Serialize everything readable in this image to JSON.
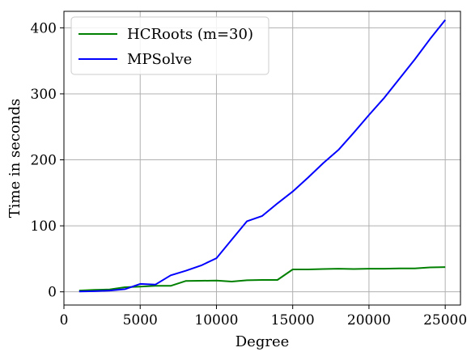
{
  "chart_data": {
    "type": "line",
    "xlabel": "Degree",
    "ylabel": "Time in seconds",
    "xlim": [
      0,
      26000
    ],
    "ylim": [
      -20,
      425
    ],
    "x_ticks": [
      0,
      5000,
      10000,
      15000,
      20000,
      25000
    ],
    "y_ticks": [
      0,
      100,
      200,
      300,
      400
    ],
    "grid": true,
    "legend_position": "top-left",
    "series": [
      {
        "name": "HCRoots (m=30)",
        "color": "#008000",
        "x": [
          1000,
          2000,
          3000,
          4000,
          5000,
          6000,
          7000,
          8000,
          9000,
          10000,
          11000,
          12000,
          13000,
          14000,
          15000,
          16000,
          17000,
          18000,
          19000,
          20000,
          21000,
          22000,
          23000,
          24000,
          25000
        ],
        "y": [
          2,
          3,
          3.5,
          7,
          8,
          9,
          9,
          16.5,
          16.8,
          17,
          15.5,
          17.5,
          18,
          18,
          34,
          34,
          34.5,
          35,
          34.5,
          35,
          35,
          35.5,
          35.5,
          37,
          37.5
        ]
      },
      {
        "name": "MPSolve",
        "color": "#0000ff",
        "x": [
          1000,
          2000,
          3000,
          4000,
          5000,
          6000,
          7000,
          8000,
          9000,
          10000,
          11000,
          12000,
          13000,
          14000,
          15000,
          16000,
          17000,
          18000,
          19000,
          20000,
          21000,
          22000,
          23000,
          24000,
          25000
        ],
        "y": [
          0.5,
          1,
          2,
          4,
          12,
          11,
          25,
          32,
          40,
          51,
          79,
          107,
          115,
          134,
          152,
          173,
          195,
          215,
          241,
          268,
          294,
          323,
          352,
          383,
          412
        ]
      }
    ]
  }
}
